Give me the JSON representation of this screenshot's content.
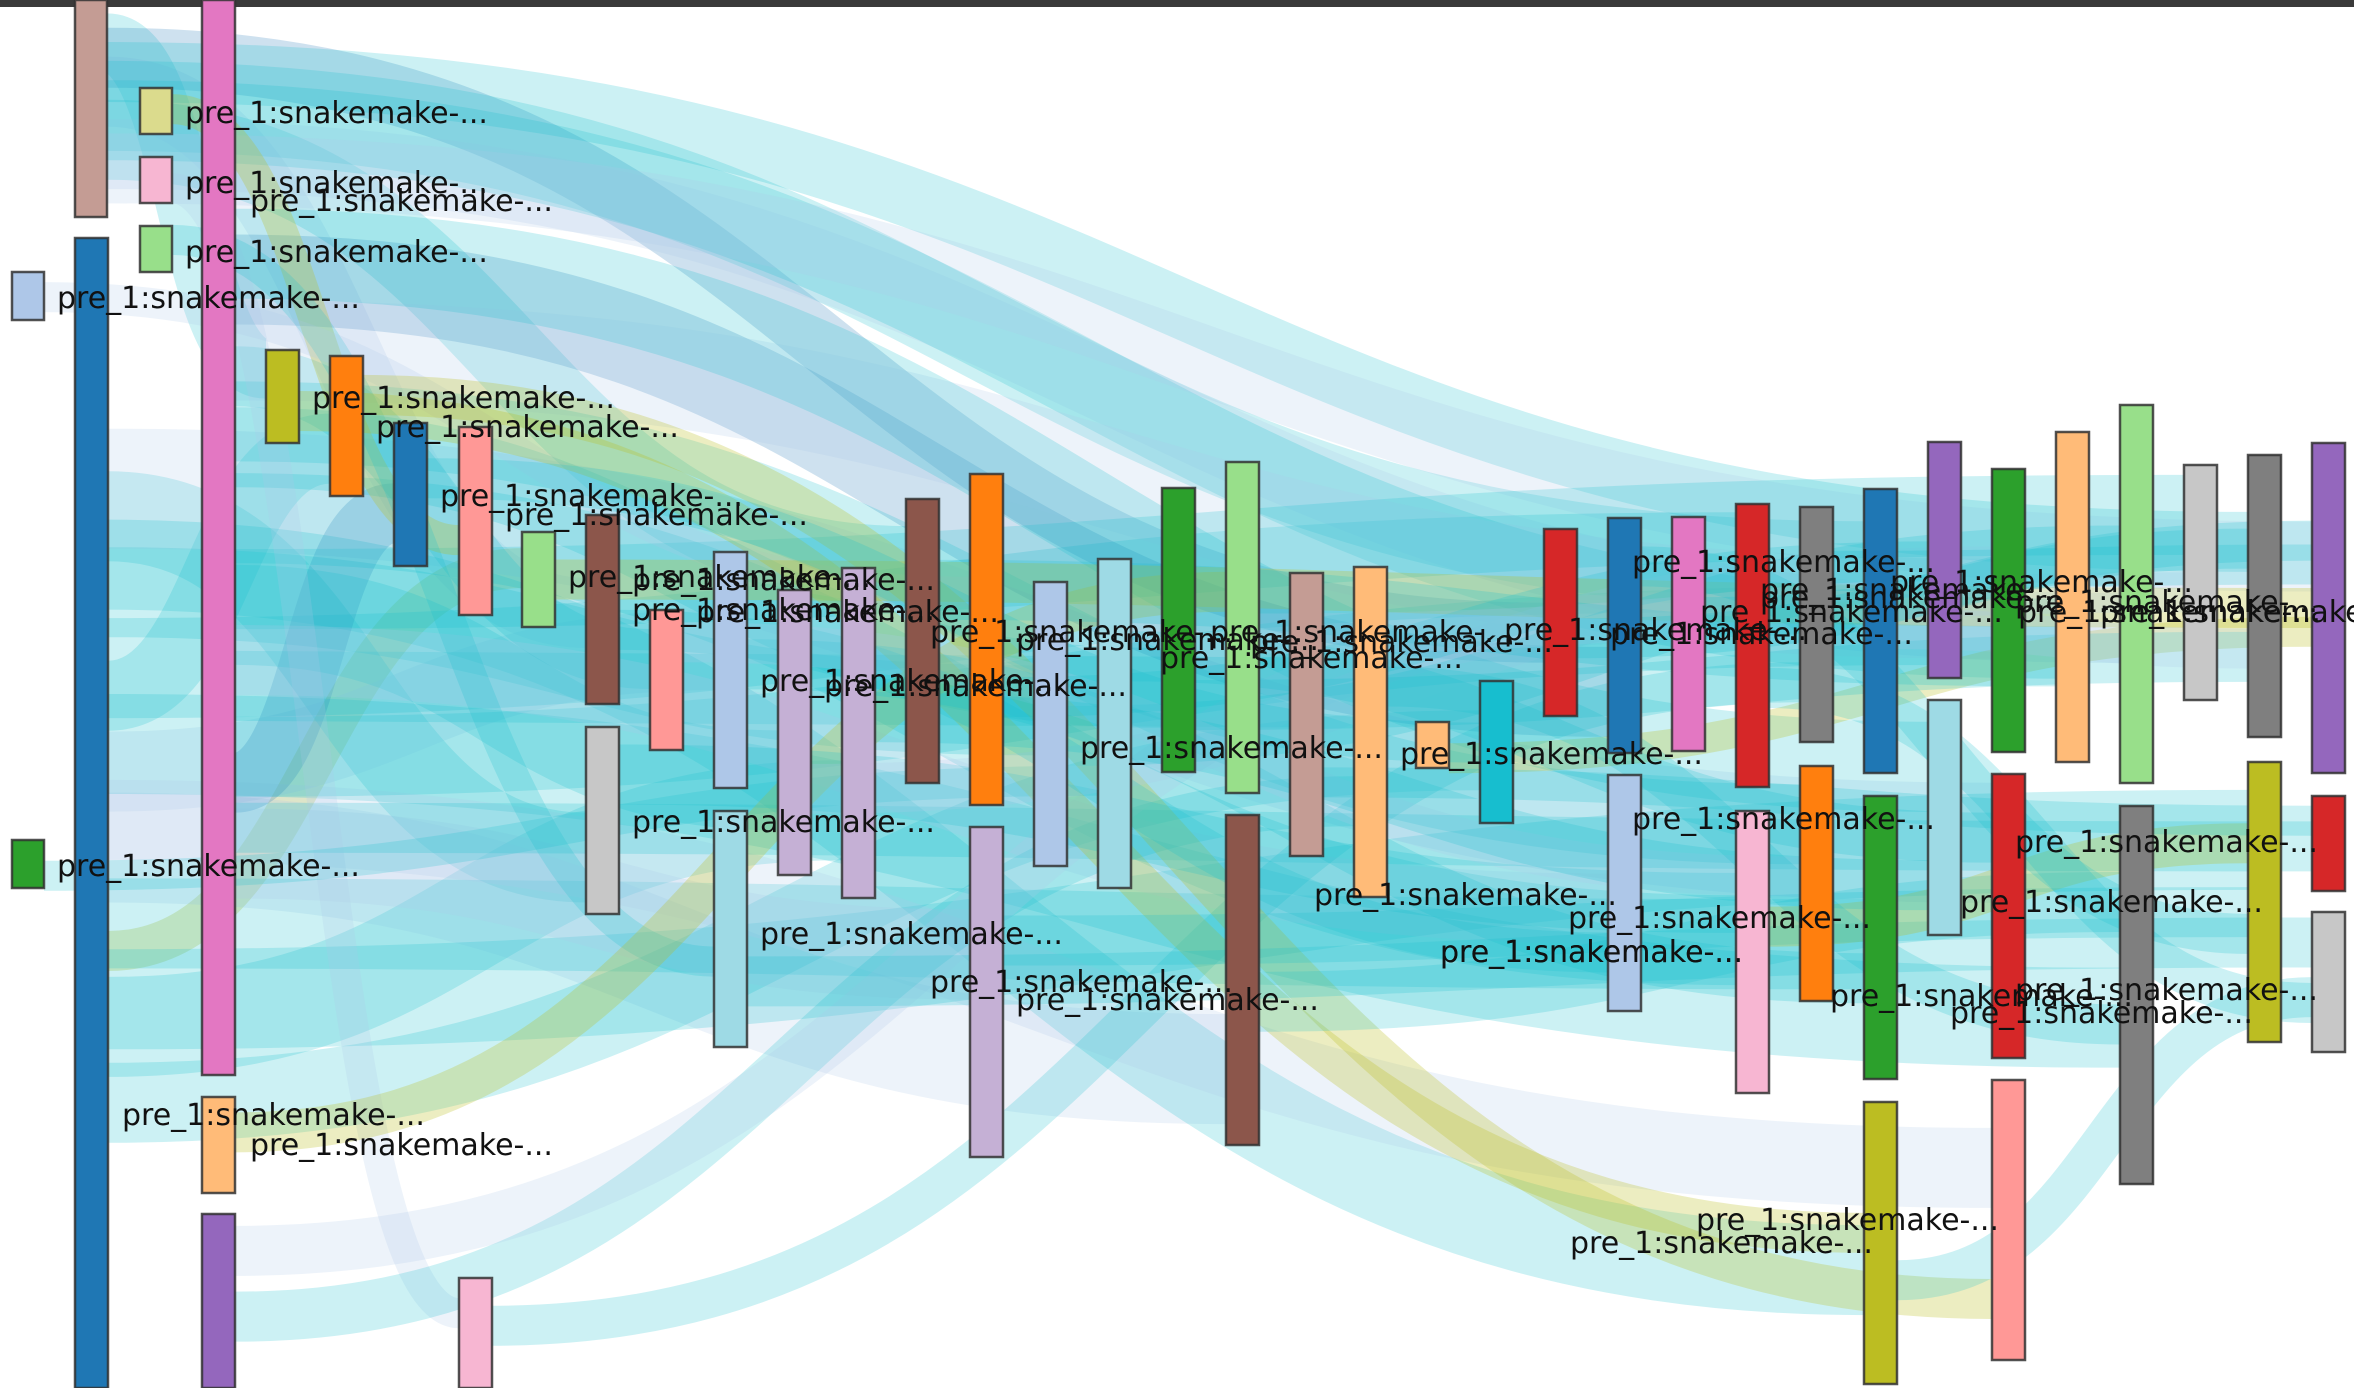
{
  "diagram": {
    "type": "sankey",
    "node_label": "pre_1:snakemake-...",
    "colors": {
      "link_cyan": "#17becf",
      "link_blue": "#1f77b4",
      "link_lavender": "#aec7e8",
      "link_olive": "#bcbd22",
      "border": "#333333",
      "label": "#111111"
    },
    "nodes": [
      {
        "name": "node-salmon-top",
        "color": "#c49c94",
        "label": ""
      },
      {
        "name": "node-khaki-small",
        "color": "#dbdb8d",
        "label": "pre_1:snakemake-..."
      },
      {
        "name": "node-pink-small",
        "color": "#f7b6d2",
        "label": "pre_1:snakemake-..."
      },
      {
        "name": "node-green-small",
        "color": "#98df8a",
        "label": "pre_1:snakemake-..."
      },
      {
        "name": "node-lightblue-small",
        "color": "#aec7e8",
        "label": "pre_1:snakemake-..."
      },
      {
        "name": "node-blue-tall",
        "color": "#1f77b4",
        "label": ""
      },
      {
        "name": "node-green-left",
        "color": "#2ca02c",
        "label": "pre_1:snakemake-..."
      },
      {
        "name": "node-magenta-tall",
        "color": "#e377c2",
        "label": "pre_1:snakemake-..."
      },
      {
        "name": "node-peach-left",
        "color": "#ffbb78",
        "label": "pre_1:snakemake-..."
      },
      {
        "name": "node-purple-left",
        "color": "#9467bd",
        "label": "pre_1:snakemake-..."
      },
      {
        "name": "node-olive-1",
        "color": "#bcbd22",
        "label": "pre_1:snakemake-..."
      },
      {
        "name": "node-orange-1",
        "color": "#ff7f0e",
        "label": "pre_1:snakemake-..."
      },
      {
        "name": "node-blue-2",
        "color": "#1f77b4",
        "label": "pre_1:snakemake-..."
      },
      {
        "name": "node-rose-1",
        "color": "#ff9896",
        "label": "pre_1:snakemake-..."
      },
      {
        "name": "node-ltgreen-1",
        "color": "#98df8a",
        "label": "pre_1:snakemake-..."
      },
      {
        "name": "node-pink-bottom",
        "color": "#f7b6d2",
        "label": ""
      },
      {
        "name": "node-brown-1",
        "color": "#8c564b",
        "label": "pre_1:snakemake-..."
      },
      {
        "name": "node-grey-1",
        "color": "#c7c7c7",
        "label": "pre_1:snakemake-..."
      },
      {
        "name": "node-rose-2",
        "color": "#ff9896",
        "label": "pre_1:snakemake-..."
      },
      {
        "name": "node-lightblue-1",
        "color": "#aec7e8",
        "label": "pre_1:snakemake-..."
      },
      {
        "name": "node-paleteal-1",
        "color": "#9edae5",
        "label": ""
      },
      {
        "name": "node-lilac-1",
        "color": "#c5b0d5",
        "label": "pre_1:snakemake-..."
      },
      {
        "name": "node-lilac-2",
        "color": "#c5b0d5",
        "label": "pre_1:snakemake-..."
      },
      {
        "name": "node-brown-2",
        "color": "#8c564b",
        "label": "pre_1:snakemake-..."
      },
      {
        "name": "node-orange-2",
        "color": "#ff7f0e",
        "label": "pre_1:snakemake-..."
      },
      {
        "name": "node-lilac-3",
        "color": "#c5b0d5",
        "label": "pre_1:snakemake-..."
      },
      {
        "name": "node-lightblue-2",
        "color": "#aec7e8",
        "label": "pre_1:snakemake-..."
      },
      {
        "name": "node-paleteal-2",
        "color": "#9edae5",
        "label": "pre_1:snakemake-..."
      },
      {
        "name": "node-green-2",
        "color": "#2ca02c",
        "label": "pre_1:snakemake-..."
      },
      {
        "name": "node-ltgreen-2",
        "color": "#98df8a",
        "label": "pre_1:snakemake-..."
      },
      {
        "name": "node-brown-3",
        "color": "#8c564b",
        "label": "pre_1:snakemake-..."
      },
      {
        "name": "node-taupe-1",
        "color": "#c49c94",
        "label": "pre_1:snakemake-..."
      },
      {
        "name": "node-peach-1",
        "color": "#ffbb78",
        "label": "pre_1:snakemake-..."
      },
      {
        "name": "node-peach-small",
        "color": "#ffbb78",
        "label": "pre_1:snakemake-..."
      },
      {
        "name": "node-teal-1",
        "color": "#17becf",
        "label": "pre_1:snakemake-..."
      },
      {
        "name": "node-red-1",
        "color": "#d62728",
        "label": "pre_1:snakemake-..."
      },
      {
        "name": "node-blue-3",
        "color": "#1f77b4",
        "label": "pre_1:snakemake-..."
      },
      {
        "name": "node-lightblue-3",
        "color": "#aec7e8",
        "label": "pre_1:snakemake-..."
      },
      {
        "name": "node-magenta-2",
        "color": "#e377c2",
        "label": "pre_1:snakemake-..."
      },
      {
        "name": "node-red-2",
        "color": "#d62728",
        "label": "pre_1:snakemake-..."
      },
      {
        "name": "node-pink-2",
        "color": "#f7b6d2",
        "label": "pre_1:snakemake-..."
      },
      {
        "name": "node-grey-2",
        "color": "#7f7f7f",
        "label": "pre_1:snakemake-..."
      },
      {
        "name": "node-orange-3",
        "color": "#ff7f0e",
        "label": "pre_1:snakemake-..."
      },
      {
        "name": "node-blue-4",
        "color": "#1f77b4",
        "label": "pre_1:snakemake-..."
      },
      {
        "name": "node-green-3",
        "color": "#2ca02c",
        "label": "pre_1:snakemake-..."
      },
      {
        "name": "node-olive-2",
        "color": "#bcbd22",
        "label": "pre_1:snakemake-..."
      },
      {
        "name": "node-purple-2",
        "color": "#9467bd",
        "label": "pre_1:snakemake-..."
      },
      {
        "name": "node-paleteal-3",
        "color": "#9edae5",
        "label": "pre_1:snakemake-..."
      },
      {
        "name": "node-green-4",
        "color": "#2ca02c",
        "label": "pre_1:snakemake-..."
      },
      {
        "name": "node-red-3",
        "color": "#d62728",
        "label": "pre_1:snakemake-..."
      },
      {
        "name": "node-rose-3",
        "color": "#ff9896",
        "label": "pre_1:snakemake-..."
      },
      {
        "name": "node-peach-2",
        "color": "#ffbb78",
        "label": "pre_1:snakemake-..."
      },
      {
        "name": "node-ltgreen-3",
        "color": "#98df8a",
        "label": "pre_1:snakemake-..."
      },
      {
        "name": "node-grey-3",
        "color": "#7f7f7f",
        "label": "pre_1:snakemake-..."
      },
      {
        "name": "node-silver-1",
        "color": "#c7c7c7",
        "label": "pre_1:snakemake-..."
      },
      {
        "name": "node-grey-4",
        "color": "#7f7f7f",
        "label": "pre_1:snakemake-..."
      },
      {
        "name": "node-olive-3",
        "color": "#bcbd22",
        "label": "pre_1:snakemake-..."
      },
      {
        "name": "node-purple-3",
        "color": "#9467bd",
        "label": ""
      },
      {
        "name": "node-red-4",
        "color": "#d62728",
        "label": ""
      },
      {
        "name": "node-silver-2",
        "color": "#c7c7c7",
        "label": ""
      }
    ]
  }
}
